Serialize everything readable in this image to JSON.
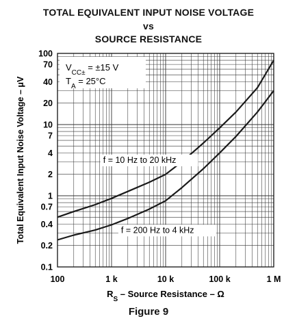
{
  "page": {
    "title_lines": [
      "TOTAL EQUIVALENT INPUT NOISE VOLTAGE",
      "vs",
      "SOURCE RESISTANCE"
    ],
    "figure_label": "Figure 9"
  },
  "chart_data": {
    "type": "line",
    "x_scale": "log",
    "y_scale": "log",
    "xlim": [
      100,
      1000000
    ],
    "ylim": [
      0.1,
      100
    ],
    "ylabel": "Total Equivalent Input Noise Voltage – μV",
    "xlabel_main": "R",
    "xlabel_sub": "S",
    "xlabel_rest": " – Source Resistance – Ω",
    "x_ticks": [
      {
        "value": 100,
        "label": "100"
      },
      {
        "value": 1000,
        "label": "1 k"
      },
      {
        "value": 10000,
        "label": "10 k"
      },
      {
        "value": 100000,
        "label": "100 k"
      },
      {
        "value": 1000000,
        "label": "1 M"
      }
    ],
    "y_ticks": [
      {
        "value": 100,
        "label": "100"
      },
      {
        "value": 70,
        "label": "70"
      },
      {
        "value": 40,
        "label": "40"
      },
      {
        "value": 20,
        "label": "20"
      },
      {
        "value": 10,
        "label": "10"
      },
      {
        "value": 7,
        "label": "7"
      },
      {
        "value": 4,
        "label": "4"
      },
      {
        "value": 2,
        "label": "2"
      },
      {
        "value": 1,
        "label": "1"
      },
      {
        "value": 0.7,
        "label": "0.7"
      },
      {
        "value": 0.4,
        "label": "0.4"
      },
      {
        "value": 0.2,
        "label": "0.2"
      },
      {
        "value": 0.1,
        "label": "0.1"
      }
    ],
    "grid": true,
    "conditions": [
      {
        "main": "V",
        "sub": "CC±",
        "rest": " = ±15 V"
      },
      {
        "main": "T",
        "sub": "A",
        "rest": " = 25°C"
      }
    ],
    "series": [
      {
        "name": "f = 10 Hz to 20 kHz",
        "x": [
          100,
          200,
          500,
          1000,
          2000,
          5000,
          10000,
          20000,
          50000,
          100000,
          200000,
          500000,
          1000000
        ],
        "y": [
          0.5,
          0.6,
          0.75,
          0.92,
          1.15,
          1.55,
          2.0,
          3.0,
          5.5,
          9.0,
          15.0,
          33.0,
          80.0
        ]
      },
      {
        "name": "f = 200 Hz to 4 kHz",
        "x": [
          100,
          200,
          500,
          1000,
          2000,
          5000,
          10000,
          20000,
          50000,
          100000,
          200000,
          500000,
          1000000
        ],
        "y": [
          0.24,
          0.28,
          0.33,
          0.39,
          0.48,
          0.65,
          0.85,
          1.3,
          2.4,
          4.0,
          6.8,
          15.0,
          30.0
        ]
      }
    ]
  }
}
